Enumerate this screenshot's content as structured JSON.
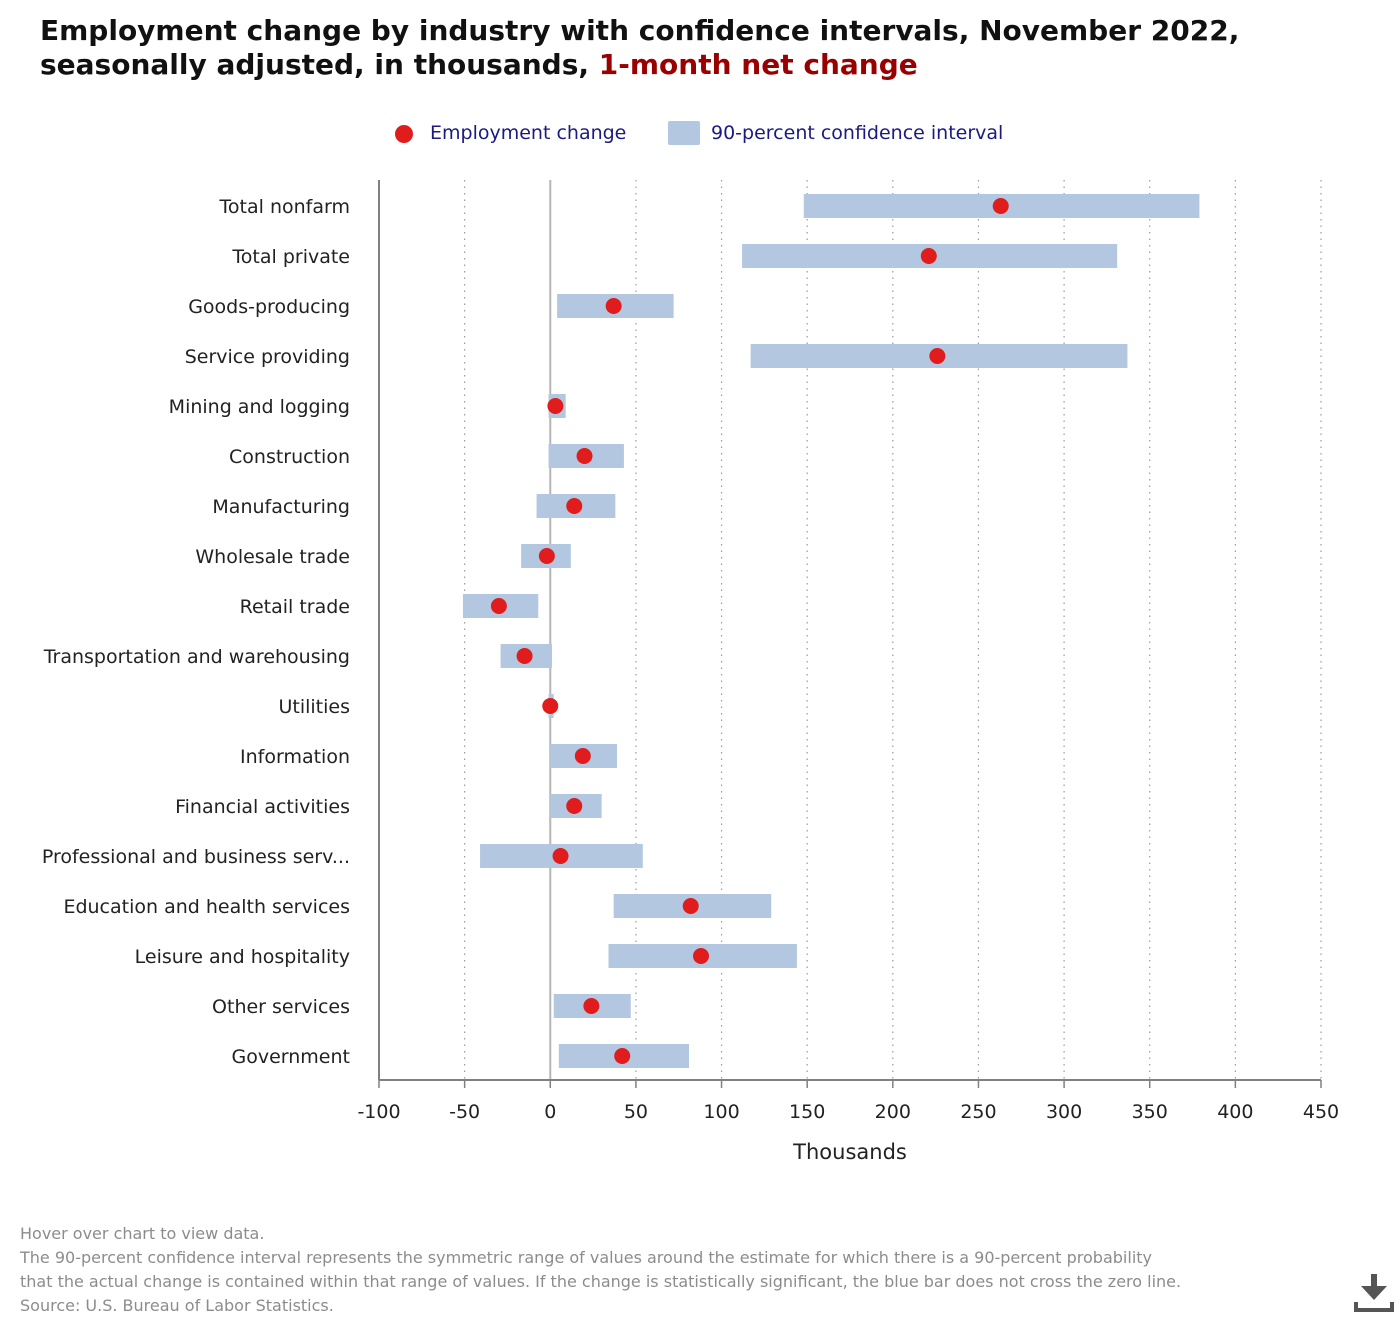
{
  "title": {
    "main": "Employment change by industry with confidence intervals, November 2022, seasonally adjusted, in thousands,",
    "highlight": "1-month net change"
  },
  "legend": {
    "point_label": "Employment change",
    "interval_label": "90-percent confidence interval"
  },
  "colors": {
    "point": "#e01c1c",
    "interval": "#b3c8e0",
    "legend_text": "#1a1a80",
    "title_highlight": "#990000"
  },
  "chart_data": {
    "type": "dot-with-interval",
    "xlabel": "Thousands",
    "xlim": [
      -100,
      450
    ],
    "xticks": [
      -100,
      -50,
      0,
      50,
      100,
      150,
      200,
      250,
      300,
      350,
      400,
      450
    ],
    "grid": "vertical dotted",
    "legend_position": "top",
    "categories": [
      "Total nonfarm",
      "Total private",
      "Goods-producing",
      "Service providing",
      "Mining and logging",
      "Construction",
      "Manufacturing",
      "Wholesale trade",
      "Retail trade",
      "Transportation and warehousing",
      "Utilities",
      "Information",
      "Financial activities",
      "Professional and business serv...",
      "Education and health services",
      "Leisure and hospitality",
      "Other services",
      "Government"
    ],
    "series": [
      {
        "name": "Employment change",
        "values": [
          263,
          221,
          37,
          226,
          3,
          20,
          14,
          -2,
          -30,
          -15,
          0,
          19,
          14,
          6,
          82,
          88,
          24,
          42
        ]
      },
      {
        "name": "90-percent confidence interval",
        "low": [
          148,
          112,
          4,
          117,
          -1,
          -1,
          -8,
          -17,
          -51,
          -29,
          -1,
          0,
          0,
          -41,
          37,
          34,
          2,
          5
        ],
        "high": [
          379,
          331,
          72,
          337,
          9,
          43,
          38,
          12,
          -7,
          1,
          2,
          39,
          30,
          54,
          129,
          144,
          47,
          81
        ]
      }
    ]
  },
  "notes": [
    "Hover over chart to view data.",
    "The 90-percent confidence interval represents the symmetric range of values around the estimate for which there is a 90-percent probability",
    "that the actual change is contained within that range of values. If the change is statistically significant, the blue bar does not cross the zero line.",
    "Source: U.S. Bureau of Labor Statistics."
  ],
  "icons": {
    "download": "download-icon"
  }
}
